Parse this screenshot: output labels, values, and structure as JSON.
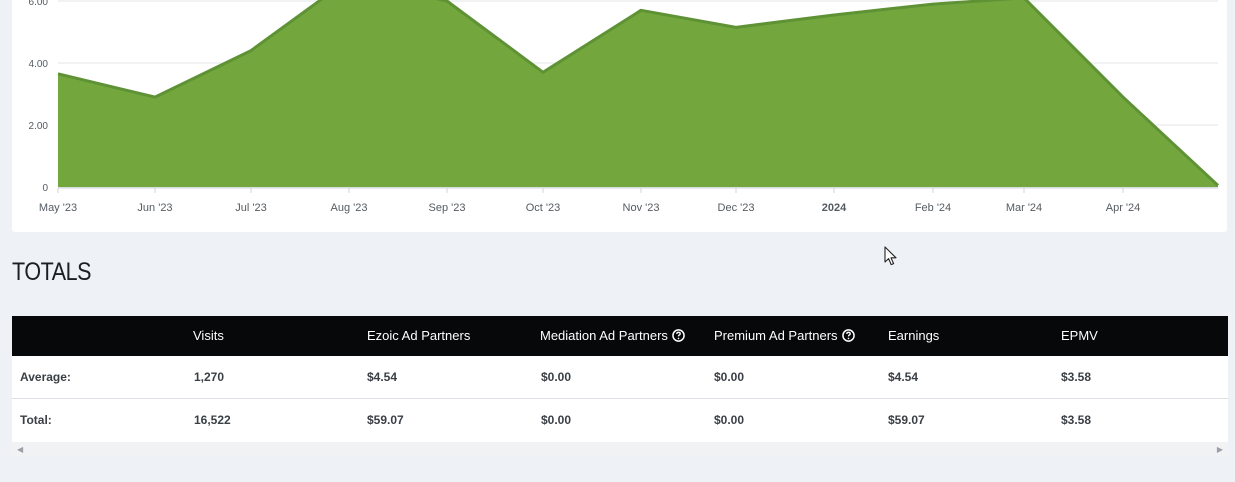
{
  "chart_data": {
    "type": "area",
    "x": [
      "May '23",
      "Jun '23",
      "Jul '23",
      "Aug '23",
      "Sep '23",
      "Oct '23",
      "Nov '23",
      "Dec '23",
      "2024",
      "Feb '24",
      "Mar '24",
      "Apr '24"
    ],
    "x_tick_labels": [
      "May '23",
      "Jun '23",
      "Jul '23",
      "Aug '23",
      "Sep '23",
      "Oct '23",
      "Nov '23",
      "Dec '23",
      "2024",
      "Feb '24",
      "Mar '24",
      "Apr '24"
    ],
    "y_tick_labels": [
      "0",
      "2.00",
      "4.00",
      "6.00"
    ],
    "points": [
      {
        "x": "May '23",
        "y": 3.65
      },
      {
        "x": "Jun '23",
        "y": 2.9
      },
      {
        "x": "Jul '23",
        "y": 4.4
      },
      {
        "x": "Aug '23",
        "y": 6.7
      },
      {
        "x": "Sep '23",
        "y": 6.0
      },
      {
        "x": "Oct '23",
        "y": 3.7
      },
      {
        "x": "Nov '23",
        "y": 5.7
      },
      {
        "x": "Dec '23",
        "y": 5.15
      },
      {
        "x": "2024",
        "y": 5.55
      },
      {
        "x": "Feb '24",
        "y": 5.9
      },
      {
        "x": "Mar '24",
        "y": 6.1
      },
      {
        "x": "Apr '24",
        "y": 2.9
      },
      {
        "x": "end",
        "y": 0.05
      }
    ],
    "ylim": [
      0,
      6
    ],
    "grid": true,
    "fill_color": "#73a73e",
    "line_color": "#5e9235"
  },
  "totals": {
    "title": "TOTALS",
    "columns": [
      "",
      "Visits",
      "Ezoic Ad Partners",
      "Mediation Ad Partners",
      "Premium Ad Partners",
      "Earnings",
      "EPMV"
    ],
    "help_icon_columns": [
      "Mediation Ad Partners",
      "Premium Ad Partners"
    ],
    "rows": [
      {
        "label": "Average:",
        "visits": "1,270",
        "ezoic": "$4.54",
        "mediation": "$0.00",
        "premium": "$0.00",
        "earnings": "$4.54",
        "epmv": "$3.58"
      },
      {
        "label": "Total:",
        "visits": "16,522",
        "ezoic": "$59.07",
        "mediation": "$0.00",
        "premium": "$0.00",
        "earnings": "$59.07",
        "epmv": "$3.58"
      }
    ]
  },
  "icons": {
    "help": "question-circle-icon",
    "scroll_left": "scroll-left-arrow-icon",
    "scroll_right": "scroll-right-arrow-icon",
    "cursor": "mouse-pointer-icon"
  }
}
